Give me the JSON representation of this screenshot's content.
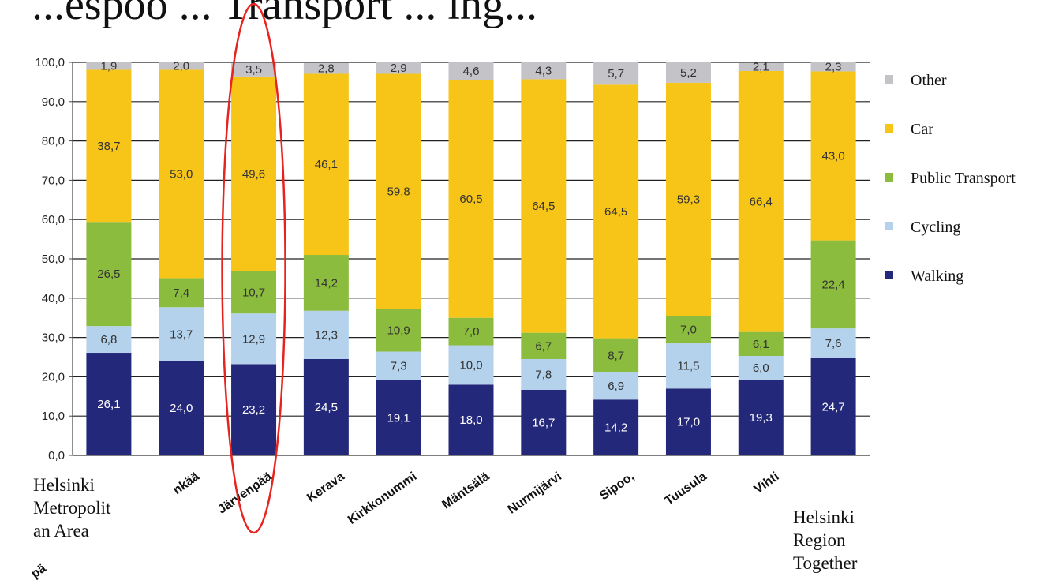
{
  "header": {
    "partial_title": "...espoo ... Transport ... ing..."
  },
  "chart_data": {
    "type": "bar",
    "stacked": true,
    "ylim": [
      0,
      100
    ],
    "yticks": [
      "0,0",
      "10,0",
      "20,0",
      "30,0",
      "40,0",
      "50,0",
      "60,0",
      "70,0",
      "80,0",
      "90,0",
      "100,0"
    ],
    "grid": true,
    "legend_position": "right",
    "categories": [
      "Helsinki Metropolitan Area",
      "...nkää",
      "Järvenpää",
      "Kerava",
      "Kirkkonummi",
      "Mäntsälä",
      "Nurmijärvi",
      "Sipoo,",
      "Tuusula",
      "Vihti",
      "Helsinki Region Together"
    ],
    "category_labels_rotated": [
      "",
      "nkää",
      "Järvenpää",
      "Kerava",
      "Kirkkonummi",
      "Mäntsälä",
      "Nurmijärvi",
      "Sipoo,",
      "Tuusula",
      "Vihti",
      ""
    ],
    "overlay_labels": [
      {
        "lines": [
          "Helsinki",
          "Metropolit",
          "an Area"
        ]
      },
      {
        "lines": [
          "Helsinki",
          "Region",
          "Together"
        ]
      }
    ],
    "series": [
      {
        "name": "Walking",
        "color": "#24287a",
        "values": [
          26.1,
          24.0,
          23.2,
          24.5,
          19.1,
          18.0,
          16.7,
          14.2,
          17.0,
          19.3,
          24.7
        ],
        "labels": [
          "26,1",
          "24,0",
          "23,2",
          "24,5",
          "19,1",
          "18,0",
          "16,7",
          "14,2",
          "17,0",
          "19,3",
          "24,7"
        ]
      },
      {
        "name": "Cycling",
        "color": "#b4d2ec",
        "values": [
          6.8,
          13.7,
          12.9,
          12.3,
          7.3,
          10.0,
          7.8,
          6.9,
          11.5,
          6.0,
          7.6
        ],
        "labels": [
          "6,8",
          "13,7",
          "12,9",
          "12,3",
          "7,3",
          "10,0",
          "7,8",
          "6,9",
          "11,5",
          "6,0",
          "7,6"
        ]
      },
      {
        "name": "Public Transport",
        "color": "#8cbc3e",
        "values": [
          26.5,
          7.4,
          10.7,
          14.2,
          10.9,
          7.0,
          6.7,
          8.7,
          7.0,
          6.1,
          22.4
        ],
        "labels": [
          "26,5",
          "7,4",
          "10,7",
          "14,2",
          "10,9",
          "7,0",
          "6,7",
          "8,7",
          "7,0",
          "6,1",
          "22,4"
        ]
      },
      {
        "name": "Car",
        "color": "#f7c518",
        "values": [
          38.7,
          53.0,
          49.6,
          46.1,
          59.8,
          60.5,
          64.5,
          64.5,
          59.3,
          66.4,
          43.0
        ],
        "labels": [
          "38,7",
          "53,0",
          "49,6",
          "46,1",
          "59,8",
          "60,5",
          "64,5",
          "64,5",
          "59,3",
          "66,4",
          "43,0"
        ]
      },
      {
        "name": "Other",
        "color": "#c4c4c8",
        "values": [
          1.9,
          2.0,
          3.5,
          2.8,
          2.9,
          4.6,
          4.3,
          5.7,
          5.2,
          2.1,
          2.3
        ],
        "labels": [
          "1,9",
          "2,0",
          "3,5",
          "2,8",
          "2,9",
          "4,6",
          "4,3",
          "5,7",
          "5,2",
          "2,1",
          "2,3"
        ]
      }
    ],
    "legend_order": [
      "Other",
      "Car",
      "Public Transport",
      "Cycling",
      "Walking"
    ],
    "highlight": {
      "category": "Järvenpää",
      "color": "#e8231e",
      "shape": "ellipse"
    }
  }
}
